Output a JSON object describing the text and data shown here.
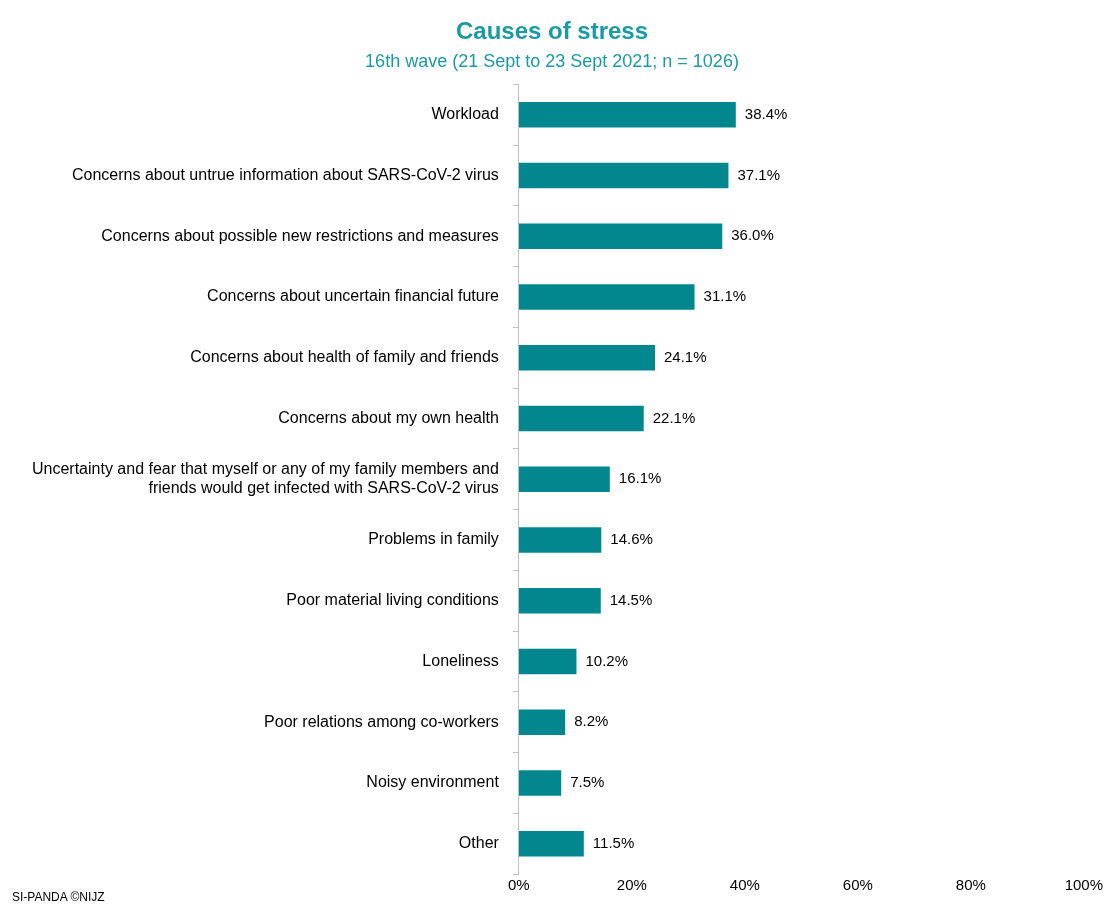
{
  "chart_data": {
    "type": "bar",
    "orientation": "horizontal",
    "title": "Causes of stress",
    "subtitle": "16th wave (21 Sept to 23 Sept 2021; n = 1026)",
    "categories": [
      "Workload",
      "Concerns about untrue information about SARS-CoV-2 virus",
      "Concerns about possible new restrictions and measures",
      "Concerns about uncertain financial future",
      "Concerns about health of family and friends",
      "Concerns about my own health",
      "Uncertainty and fear that myself or any of my family members and friends would get infected with SARS-CoV-2 virus",
      "Problems in family",
      "Poor material living conditions",
      "Loneliness",
      "Poor relations among co-workers",
      "Noisy environment",
      "Other"
    ],
    "values": [
      38.4,
      37.1,
      36.0,
      31.1,
      24.1,
      22.1,
      16.1,
      14.6,
      14.5,
      10.2,
      8.2,
      7.5,
      11.5
    ],
    "value_labels": [
      "38.4%",
      "37.1%",
      "36.0%",
      "31.1%",
      "24.1%",
      "22.1%",
      "16.1%",
      "14.6%",
      "14.5%",
      "10.2%",
      "8.2%",
      "7.5%",
      "11.5%"
    ],
    "color": "#03878f",
    "xlim": [
      0,
      100
    ],
    "xticks": [
      {
        "value": 0,
        "label": "0%"
      },
      {
        "value": 20,
        "label": "20%"
      },
      {
        "value": 40,
        "label": "40%"
      },
      {
        "value": 60,
        "label": "60%"
      },
      {
        "value": 80,
        "label": "80%"
      },
      {
        "value": 100,
        "label": "100%"
      }
    ],
    "grid": false,
    "legend": false,
    "annotations": [
      "SI-PANDA ©NIJZ"
    ]
  }
}
